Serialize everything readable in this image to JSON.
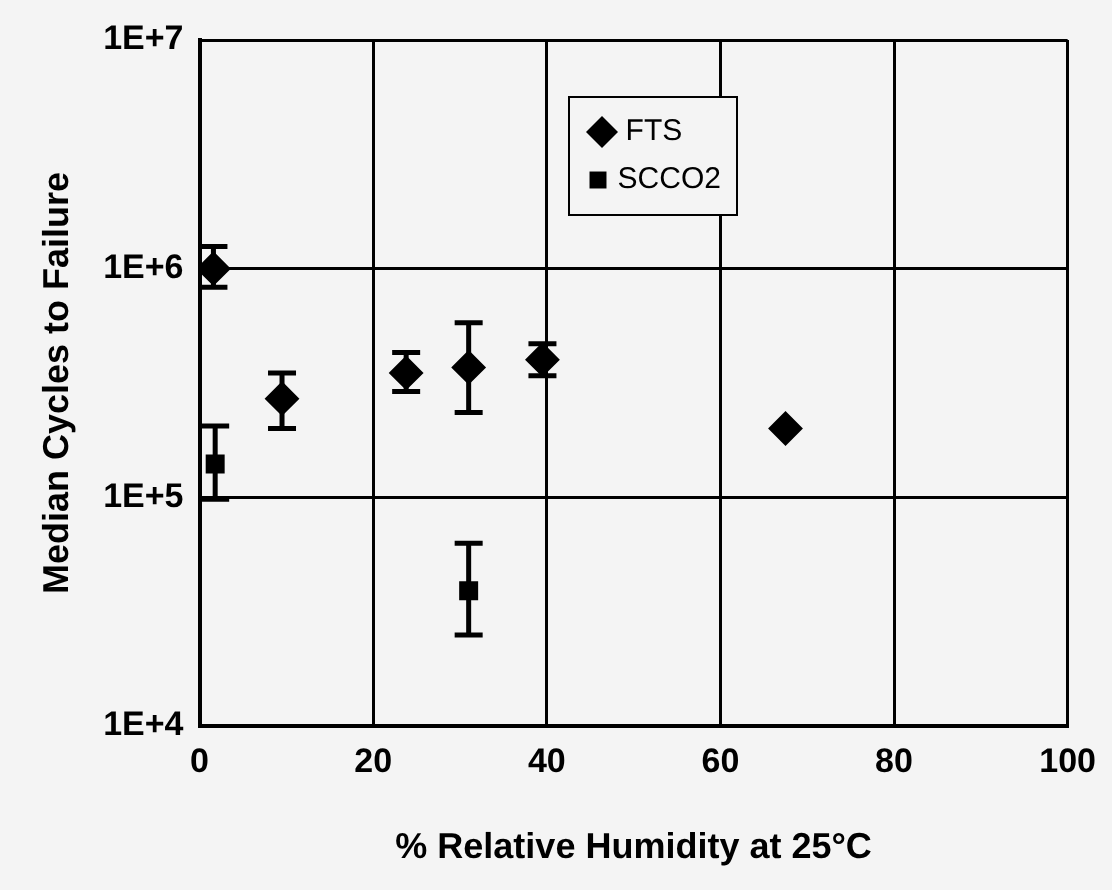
{
  "chart_data": {
    "type": "scatter",
    "xlabel": "% Relative Humidity at 25°C",
    "ylabel": "Median Cycles to Failure",
    "xlim": [
      0,
      100
    ],
    "xticks": [
      0,
      20,
      40,
      60,
      80,
      100
    ],
    "ylim": [
      10000,
      10000000
    ],
    "yticks": [
      {
        "value": 10000,
        "label": "1E+4"
      },
      {
        "value": 100000,
        "label": "1E+5"
      },
      {
        "value": 1000000,
        "label": "1E+6"
      },
      {
        "value": 10000000,
        "label": "1E+7"
      }
    ],
    "log": "y",
    "grid": true,
    "legend": "top",
    "series": [
      {
        "name": "FTS",
        "color": "#000000",
        "marker": "diamond",
        "x": [
          1.6,
          9.5,
          23.8,
          31,
          39.5,
          67.5
        ],
        "values": [
          1000000,
          270000,
          350000,
          370000,
          400000,
          200000
        ],
        "errors": [
          [
            830000,
            1250000
          ],
          [
            200000,
            350000
          ],
          [
            290000,
            430000
          ],
          [
            235000,
            580000
          ],
          [
            340000,
            470000
          ],
          null
        ]
      },
      {
        "name": "SCCO2",
        "color": "#000000",
        "marker": "square",
        "x": [
          1.8,
          31
        ],
        "values": [
          140000,
          39000
        ],
        "errors": [
          [
            98000,
            205000
          ],
          [
            25000,
            63000
          ]
        ]
      }
    ]
  }
}
